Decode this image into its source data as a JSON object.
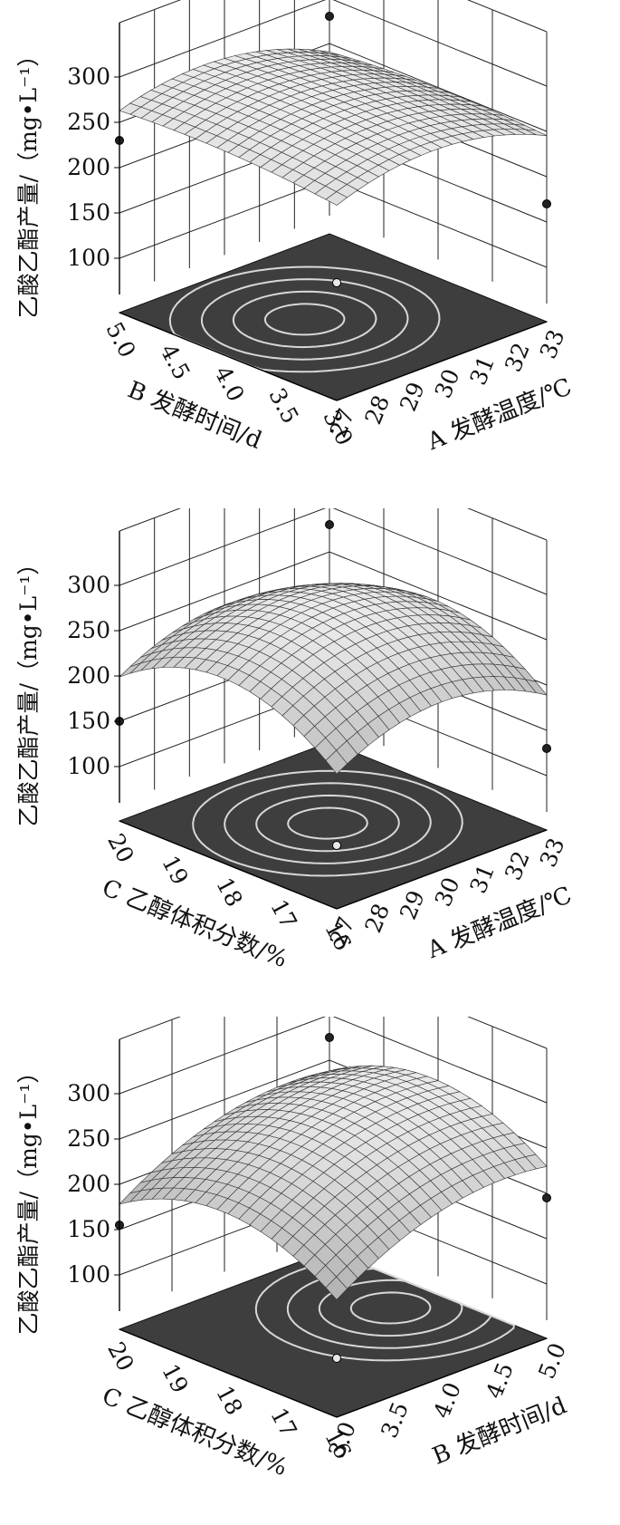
{
  "chart_data": [
    {
      "type": "surface3d",
      "zlabel": "乙酸乙酯产量/（mg•L⁻¹）",
      "zticks": [
        "100",
        "150",
        "200",
        "250",
        "300"
      ],
      "xlabel": "A 发酵温度/℃",
      "xticks": [
        "27",
        "28",
        "29",
        "30",
        "31",
        "32",
        "33"
      ],
      "ylabel": "B 发酵时间/d",
      "yticks": [
        "3.0",
        "3.5",
        "4.0",
        "4.5",
        "5.0"
      ],
      "xlim": [
        27,
        33
      ],
      "ylim": [
        3.0,
        5.0
      ],
      "zlim": [
        100,
        300
      ],
      "surface": {
        "x0": 29.5,
        "y0": 4.1,
        "zmax": 283,
        "ax": 2.8,
        "ay": 6.0,
        "axy": 1.0
      },
      "marked_points": [
        {
          "x": 27,
          "y": 5.0,
          "z": 230
        },
        {
          "x": 27,
          "y": 3.0,
          "z": 170
        },
        {
          "x": 33,
          "y": 3.0,
          "z": 170
        },
        {
          "x": 33,
          "y": 5.0,
          "z": 280
        }
      ],
      "grid": true,
      "contour_floor": true
    },
    {
      "type": "surface3d",
      "zlabel": "乙酸乙酯产量/（mg•L⁻¹）",
      "zticks": [
        "100",
        "150",
        "200",
        "250",
        "300"
      ],
      "xlabel": "A 发酵温度/℃",
      "xticks": [
        "27",
        "28",
        "29",
        "30",
        "31",
        "32",
        "33"
      ],
      "ylabel": "C 乙醇体积分数/%",
      "yticks": [
        "16",
        "17",
        "18",
        "19",
        "20"
      ],
      "xlim": [
        27,
        33
      ],
      "ylim": [
        16,
        20
      ],
      "zlim": [
        100,
        300
      ],
      "surface": {
        "x0": 30.0,
        "y0": 18.1,
        "zmax": 280,
        "ax": 4.0,
        "ay": 12.5,
        "axy": 0
      },
      "marked_points": [
        {
          "x": 27,
          "y": 20,
          "z": 150
        },
        {
          "x": 27,
          "y": 16,
          "z": 110
        },
        {
          "x": 33,
          "y": 16,
          "z": 130
        },
        {
          "x": 33,
          "y": 20,
          "z": 280
        }
      ],
      "grid": true,
      "contour_floor": true
    },
    {
      "type": "surface3d",
      "zlabel": "乙酸乙酯产量/（mg•L⁻¹）",
      "zticks": [
        "100",
        "150",
        "200",
        "250",
        "300"
      ],
      "xlabel": "B 发酵时间/d",
      "xticks": [
        "3.0",
        "3.5",
        "4.0",
        "4.5",
        "5.0"
      ],
      "ylabel": "C 乙醇体积分数/%",
      "yticks": [
        "16",
        "17",
        "18",
        "19",
        "20"
      ],
      "xlim": [
        3.0,
        5.0
      ],
      "ylim": [
        16,
        20
      ],
      "zlim": [
        100,
        300
      ],
      "surface": {
        "x0": 4.6,
        "y0": 18.1,
        "zmax": 280,
        "ax": 25.0,
        "ay": 10.5,
        "axy": 0
      },
      "marked_points": [
        {
          "x": 3.0,
          "y": 20,
          "z": 155
        },
        {
          "x": 3.0,
          "y": 16,
          "z": 105
        },
        {
          "x": 5.0,
          "y": 16,
          "z": 195
        },
        {
          "x": 5.0,
          "y": 20,
          "z": 275
        }
      ],
      "grid": true,
      "contour_floor": true
    }
  ]
}
